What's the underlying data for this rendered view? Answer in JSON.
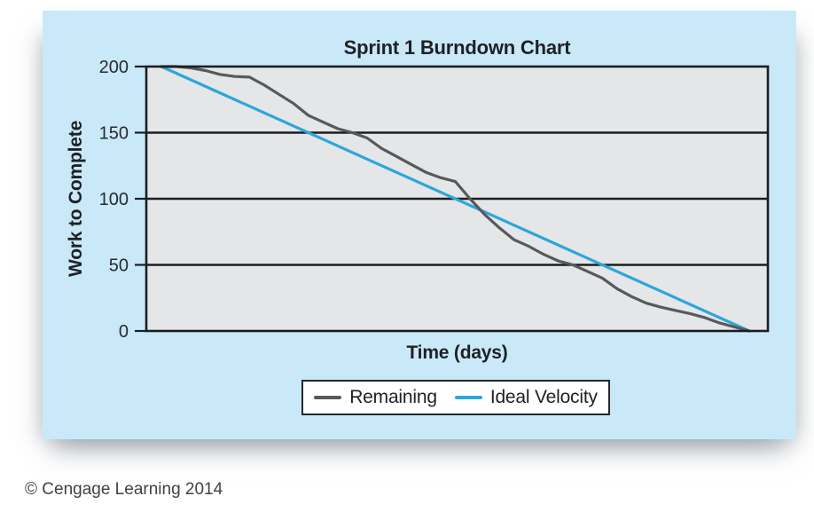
{
  "figure": {
    "title": "Sprint 1 Burndown Chart",
    "x_axis_label": "Time (days)",
    "y_axis_label": "Work to Complete",
    "copyright": "© Cengage Learning 2014"
  },
  "legend": {
    "items": [
      {
        "label": "Remaining",
        "color": "#58595b"
      },
      {
        "label": "Ideal Velocity",
        "color": "#2ba7db"
      }
    ]
  },
  "colors": {
    "panel_background": "#c9e9f9",
    "plot_background": "#e5e6e7",
    "grid_and_border": "#1b1e21",
    "remaining_line": "#58595b",
    "ideal_line": "#2ba7db",
    "text": "#1e2124"
  },
  "chart_data": {
    "type": "line",
    "title": "Sprint 1 Burndown Chart",
    "xlabel": "Time (days)",
    "ylabel": "Work to Complete",
    "xlim": [
      0,
      20
    ],
    "ylim": [
      0,
      200
    ],
    "y_ticks": [
      0,
      50,
      100,
      150,
      200
    ],
    "x_tick_labels_shown": false,
    "grid": "horizontal",
    "legend_position": "bottom",
    "plot_bg": "#e5e6e7",
    "grid_color": "#1b1e21",
    "text_color": "#26292c",
    "series": [
      {
        "name": "Remaining",
        "color": "#58595b",
        "x": [
          0,
          0.5,
          1,
          1.5,
          2,
          2.5,
          3,
          3.5,
          4,
          4.5,
          5,
          5.5,
          6,
          6.5,
          7,
          7.5,
          8,
          8.5,
          9,
          9.5,
          10,
          10.5,
          11,
          11.5,
          12,
          12.5,
          13,
          13.5,
          14,
          14.5,
          15,
          15.5,
          16,
          16.5,
          17,
          17.5,
          18,
          18.5,
          19,
          19.5,
          20
        ],
        "y": [
          200,
          200,
          199,
          197,
          194,
          192.5,
          192,
          186,
          179,
          172,
          163,
          158,
          153,
          150,
          146,
          138,
          132,
          126,
          120,
          116,
          113,
          100,
          88,
          78,
          69,
          64,
          58,
          53,
          50,
          45,
          40,
          32,
          26,
          21,
          18,
          15.5,
          13,
          10,
          6,
          3,
          0
        ]
      },
      {
        "name": "Ideal Velocity",
        "color": "#2ba7db",
        "x": [
          0,
          20
        ],
        "y": [
          200,
          0
        ]
      }
    ]
  }
}
